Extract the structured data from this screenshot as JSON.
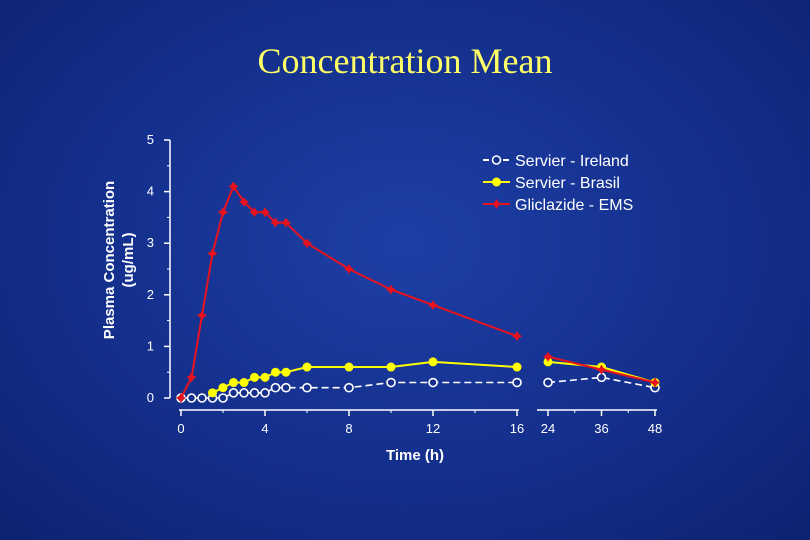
{
  "chart_data": {
    "type": "line",
    "title": "Concentration Mean",
    "xlabel": "Time (h)",
    "ylabel": [
      "Plasma Concentration",
      "(ug/mL)"
    ],
    "x_ticks": [
      "0",
      "4",
      "8",
      "12",
      "16",
      "24",
      "36",
      "48"
    ],
    "y_ticks": [
      "0",
      "1",
      "2",
      "3",
      "4",
      "5"
    ],
    "ylim": [
      0,
      5
    ],
    "legend_position": "top-right",
    "series": [
      {
        "name": "Servier - Ireland",
        "color": "#ffffff",
        "marker": "open-circle",
        "line": "dashed",
        "x": [
          0,
          0.5,
          1,
          1.5,
          2,
          2.5,
          3,
          3.5,
          4,
          4.5,
          5,
          6,
          8,
          10,
          12,
          16,
          24,
          36,
          48
        ],
        "y": [
          0,
          0,
          0,
          0,
          0,
          0.1,
          0.1,
          0.1,
          0.1,
          0.2,
          0.2,
          0.2,
          0.2,
          0.3,
          0.3,
          0.3,
          0.3,
          0.4,
          0.2
        ]
      },
      {
        "name": "Servier - Brasil",
        "color": "#ffff00",
        "marker": "filled-circle",
        "line": "solid",
        "x": [
          1.5,
          2,
          2.5,
          3,
          3.5,
          4,
          4.5,
          5,
          6,
          8,
          10,
          12,
          16,
          24,
          36,
          48
        ],
        "y": [
          0.1,
          0.2,
          0.3,
          0.3,
          0.4,
          0.4,
          0.5,
          0.5,
          0.6,
          0.6,
          0.6,
          0.7,
          0.6,
          0.7,
          0.6,
          0.3
        ]
      },
      {
        "name": "Gliclazide - EMS",
        "color": "#e8121e",
        "marker": "star",
        "line": "solid",
        "x": [
          0,
          0.5,
          1,
          1.5,
          2,
          2.5,
          3,
          3.5,
          4,
          4.5,
          5,
          6,
          8,
          10,
          12,
          16,
          24,
          36,
          48
        ],
        "y": [
          0,
          0.4,
          1.6,
          2.8,
          3.6,
          4.1,
          3.8,
          3.6,
          3.6,
          3.4,
          3.4,
          3.0,
          2.5,
          2.1,
          1.8,
          1.2,
          0.8,
          0.55,
          0.3
        ]
      }
    ]
  }
}
